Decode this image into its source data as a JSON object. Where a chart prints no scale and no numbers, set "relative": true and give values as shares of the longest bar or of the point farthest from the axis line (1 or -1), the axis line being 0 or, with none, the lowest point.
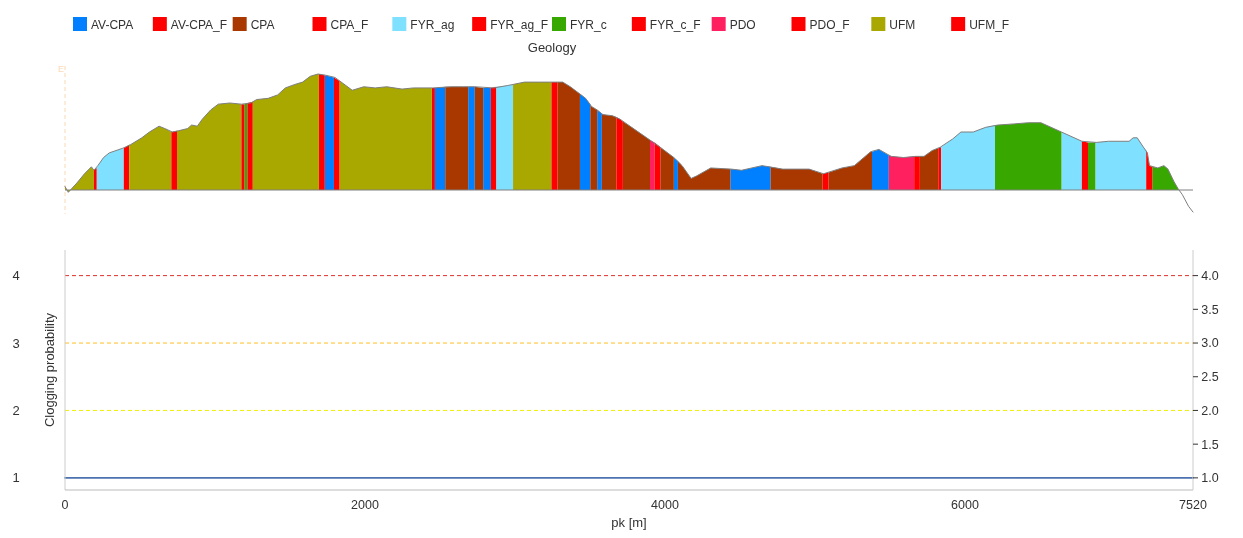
{
  "chart_data": [
    {
      "type": "area",
      "relative": true,
      "xlim": [
        0,
        7520
      ],
      "legend": "top",
      "legend_title": "Geology",
      "ref_lines": [
        {
          "axis": "x",
          "value": 0,
          "label": "E",
          "color": "#fbd9b5",
          "line_style": "dashed"
        }
      ],
      "series": [
        {
          "name": "AV-CPA",
          "color": "#0080ff",
          "x": [
            1732,
            1793,
            null,
            2466,
            2535,
            null,
            2688,
            2732,
            null,
            2788,
            2839,
            null,
            3433,
            3471,
            3502,
            null,
            3548,
            3579,
            null,
            4059,
            4086,
            null,
            4436,
            4510,
            4647,
            4704,
            null,
            5380,
            5426,
            5492
          ],
          "values": [
            0.99,
            0.97,
            null,
            0.88,
            0.89,
            null,
            0.89,
            0.89,
            null,
            0.88,
            0.88,
            null,
            0.83,
            0.79,
            0.74,
            null,
            0.69,
            0.66,
            null,
            0.28,
            0.25,
            null,
            0.18,
            0.17,
            0.21,
            0.2,
            null,
            0.33,
            0.35,
            0.3
          ]
        },
        {
          "name": "AV-CPA_F",
          "color": "#ff0000",
          "x": [
            1693,
            1732,
            null,
            1793,
            1831,
            null,
            2446,
            2466
          ],
          "values": [
            1.0,
            0.99,
            null,
            0.97,
            0.94,
            null,
            0.88,
            0.88
          ]
        },
        {
          "name": "CPA",
          "color": "#a83800",
          "x": [
            2535,
            2579,
            2655,
            2688,
            null,
            2732,
            2788,
            null,
            3283,
            3318,
            3369,
            3420,
            3433,
            null,
            3502,
            3510,
            3548,
            null,
            3579,
            3586,
            3650,
            3676,
            null,
            3719,
            3778,
            3900,
            null,
            3969,
            3977,
            4059,
            null,
            4086,
            4114,
            4174,
            4209,
            4305,
            4436,
            null,
            4704,
            4784,
            4961,
            5051,
            null,
            5090,
            5180,
            5262,
            5371,
            5380,
            null,
            5699,
            5727,
            5781,
            5822
          ],
          "values": [
            0.89,
            0.89,
            0.89,
            0.89,
            null,
            0.89,
            0.88,
            null,
            0.93,
            0.93,
            0.89,
            0.84,
            0.83,
            null,
            0.74,
            0.72,
            0.69,
            null,
            0.66,
            0.65,
            0.64,
            0.63,
            null,
            0.59,
            0.54,
            0.43,
            null,
            0.37,
            0.36,
            0.28,
            null,
            0.25,
            0.21,
            0.1,
            0.12,
            0.19,
            0.18,
            null,
            0.2,
            0.18,
            0.18,
            0.14,
            null,
            0.15,
            0.19,
            0.21,
            0.33,
            0.33,
            null,
            0.29,
            0.29,
            0.34,
            0.36
          ]
        },
        {
          "name": "CPA_F",
          "color": "#ff0000",
          "x": [
            3242,
            3283,
            null,
            3676,
            3701,
            3719,
            null,
            5051,
            5090,
            null,
            5661,
            5699,
            null,
            5822,
            5841
          ],
          "values": [
            0.93,
            0.93,
            null,
            0.63,
            0.61,
            0.59,
            null,
            0.14,
            0.15,
            null,
            0.29,
            0.29,
            null,
            0.36,
            0.37
          ]
        },
        {
          "name": "FYR_ag",
          "color": "#80e0ff",
          "x": [
            211,
            219,
            257,
            295,
            385,
            392,
            null,
            2874,
            2948,
            2987,
            null,
            5841,
            5918,
            5973,
            6055,
            6137,
            6200,
            null,
            6643,
            6779,
            null,
            6869,
            6957,
            7094,
            7121,
            7148,
            7189,
            7208
          ],
          "values": [
            0.19,
            0.21,
            0.28,
            0.32,
            0.36,
            0.36,
            null,
            0.89,
            0.9,
            0.91,
            null,
            0.37,
            0.44,
            0.5,
            0.5,
            0.54,
            0.56,
            null,
            0.5,
            0.42,
            null,
            0.41,
            0.42,
            0.42,
            0.45,
            0.45,
            0.37,
            0.34
          ]
        },
        {
          "name": "FYR_ag_F",
          "color": "#ff0000",
          "x": [
            392,
            428,
            null,
            2839,
            2874
          ],
          "values": [
            0.36,
            0.39,
            null,
            0.88,
            0.89
          ]
        },
        {
          "name": "FYR_c",
          "color": "#38a800",
          "x": [
            1196,
            1216,
            null,
            6200,
            6219,
            6328,
            6424,
            6506,
            6643,
            null,
            6820,
            6869,
            null,
            7249,
            7285,
            7326,
            7353,
            7394,
            7421
          ],
          "values": [
            0.74,
            0.75,
            null,
            0.56,
            0.56,
            0.57,
            0.58,
            0.58,
            0.5,
            null,
            0.41,
            0.41,
            null,
            0.2,
            0.19,
            0.21,
            0.18,
            0.07,
            0.01
          ]
        },
        {
          "name": "FYR_c_F",
          "color": "#ff0000",
          "x": [
            1216,
            1252,
            null,
            6779,
            6820,
            null,
            7208,
            7216,
            7230,
            7249
          ],
          "values": [
            0.75,
            0.76,
            null,
            0.42,
            0.41,
            null,
            0.34,
            0.32,
            0.21,
            0.2
          ]
        },
        {
          "name": "PDO",
          "color": "#ff2060",
          "x": [
            3900,
            3931,
            null,
            5492,
            5508,
            5590,
            5661
          ],
          "values": [
            0.43,
            0.41,
            null,
            0.3,
            0.29,
            0.28,
            0.29
          ]
        },
        {
          "name": "PDO_F",
          "color": "#ff0000",
          "x": [
            3931,
            3969
          ],
          "values": [
            0.41,
            0.37
          ]
        },
        {
          "name": "UFM",
          "color": "#a8a800",
          "x": [
            0,
            22,
            79,
            130,
            176,
            193,
            null,
            428,
            436,
            512,
            563,
            627,
            665,
            709,
            null,
            747,
            755,
            818,
            844,
            882,
            915,
            971,
            1022,
            1099,
            1176,
            null,
            1252,
            1278,
            1354,
            1418,
            1469,
            1533,
            1584,
            1635,
            1686,
            1693,
            null,
            1831,
            1852,
            1915,
            1992,
            2068,
            2145,
            2247,
            2323,
            2446,
            null,
            2987,
            3063,
            3165,
            3242
          ],
          "values": [
            0.03,
            -0.02,
            0.06,
            0.14,
            0.2,
            0.17,
            null,
            0.39,
            0.39,
            0.45,
            0.5,
            0.55,
            0.53,
            0.5,
            null,
            0.51,
            0.51,
            0.53,
            0.56,
            0.55,
            0.61,
            0.69,
            0.74,
            0.75,
            0.74,
            null,
            0.76,
            0.78,
            0.79,
            0.82,
            0.88,
            0.91,
            0.93,
            0.98,
            1.0,
            1.0,
            null,
            0.94,
            0.92,
            0.86,
            0.89,
            0.88,
            0.89,
            0.87,
            0.88,
            0.88,
            null,
            0.91,
            0.93,
            0.93,
            0.93
          ]
        },
        {
          "name": "UFM_F",
          "color": "#ff0000",
          "x": [
            193,
            211,
            null,
            709,
            747,
            null,
            1176,
            1196
          ],
          "values": [
            0.17,
            0.19,
            null,
            0.5,
            0.51,
            null,
            0.74,
            0.74
          ]
        },
        {
          "type": "line",
          "color": "#7f7f7f",
          "x": [
            0,
            22,
            79,
            130,
            176,
            193,
            219,
            257,
            295,
            385,
            436,
            512,
            563,
            627,
            665,
            716,
            755,
            818,
            844,
            882,
            915,
            971,
            1022,
            1099,
            1176,
            1239,
            1278,
            1354,
            1418,
            1469,
            1533,
            1584,
            1635,
            1686,
            1737,
            1800,
            1852,
            1915,
            1992,
            2068,
            2145,
            2247,
            2323,
            2451,
            2579,
            2655,
            2732,
            2859,
            2948,
            2987,
            3063,
            3165,
            3318,
            3369,
            3420,
            3471,
            3510,
            3548,
            3586,
            3650,
            3701,
            3778,
            3900,
            3977,
            4059,
            4114,
            4174,
            4209,
            4305,
            4442,
            4510,
            4647,
            4784,
            4961,
            5057,
            5180,
            5262,
            5371,
            5426,
            5508,
            5590,
            5672,
            5727,
            5781,
            5836,
            5918,
            5973,
            6055,
            6137,
            6219,
            6328,
            6424,
            6506,
            6643,
            6779,
            6875,
            6957,
            7094,
            7121,
            7148,
            7189,
            7216,
            7230,
            7285,
            7326,
            7353,
            7394,
            7421,
            7449,
            7490,
            7520
          ],
          "values": [
            0.03,
            -0.02,
            0.06,
            0.14,
            0.2,
            0.17,
            0.21,
            0.28,
            0.32,
            0.36,
            0.39,
            0.45,
            0.5,
            0.55,
            0.53,
            0.5,
            0.51,
            0.53,
            0.56,
            0.55,
            0.61,
            0.69,
            0.74,
            0.75,
            0.74,
            0.75,
            0.78,
            0.79,
            0.82,
            0.88,
            0.91,
            0.93,
            0.98,
            1.0,
            0.99,
            0.97,
            0.92,
            0.86,
            0.89,
            0.88,
            0.89,
            0.87,
            0.88,
            0.88,
            0.89,
            0.89,
            0.89,
            0.88,
            0.9,
            0.91,
            0.93,
            0.93,
            0.93,
            0.89,
            0.84,
            0.79,
            0.72,
            0.69,
            0.65,
            0.64,
            0.61,
            0.54,
            0.43,
            0.36,
            0.28,
            0.21,
            0.1,
            0.12,
            0.19,
            0.18,
            0.17,
            0.21,
            0.18,
            0.18,
            0.14,
            0.19,
            0.21,
            0.33,
            0.35,
            0.29,
            0.28,
            0.29,
            0.29,
            0.34,
            0.37,
            0.44,
            0.5,
            0.5,
            0.54,
            0.56,
            0.57,
            0.58,
            0.58,
            0.5,
            0.42,
            0.41,
            0.42,
            0.42,
            0.45,
            0.45,
            0.37,
            0.32,
            0.21,
            0.19,
            0.21,
            0.18,
            0.07,
            0.01,
            -0.04,
            -0.14,
            -0.19
          ]
        }
      ]
    },
    {
      "type": "line",
      "xlabel": "pk [m]",
      "ylabel": "Clogging probability",
      "xlim": [
        0,
        7520
      ],
      "xticks": [
        0,
        2000,
        4000,
        6000,
        7520
      ],
      "ylim": [
        0.82,
        4.38
      ],
      "yticks": [
        1,
        2,
        3,
        4
      ],
      "y2lim": [
        0.82,
        4.38
      ],
      "y2ticks": [
        {
          "value": 1,
          "label": "1.0"
        },
        {
          "value": 1.5,
          "label": "1.5"
        },
        {
          "value": 2,
          "label": "2.0"
        },
        {
          "value": 2.5,
          "label": "2.5"
        },
        {
          "value": 3,
          "label": "3.0"
        },
        {
          "value": 3.5,
          "label": "3.5"
        },
        {
          "value": 4,
          "label": "4.0"
        }
      ],
      "x": [
        0,
        7520
      ],
      "series": [
        {
          "color": "#4c72b0",
          "values": [
            1,
            1
          ]
        }
      ],
      "ref_lines": [
        {
          "axis": "y",
          "value": 4,
          "color": "#e0302a",
          "line_style": "dashed"
        },
        {
          "axis": "y",
          "value": 3,
          "color": "#ffc020",
          "line_style": "dashed"
        },
        {
          "axis": "y",
          "value": 2,
          "color": "#f0f000",
          "line_style": "dashed"
        }
      ]
    }
  ]
}
